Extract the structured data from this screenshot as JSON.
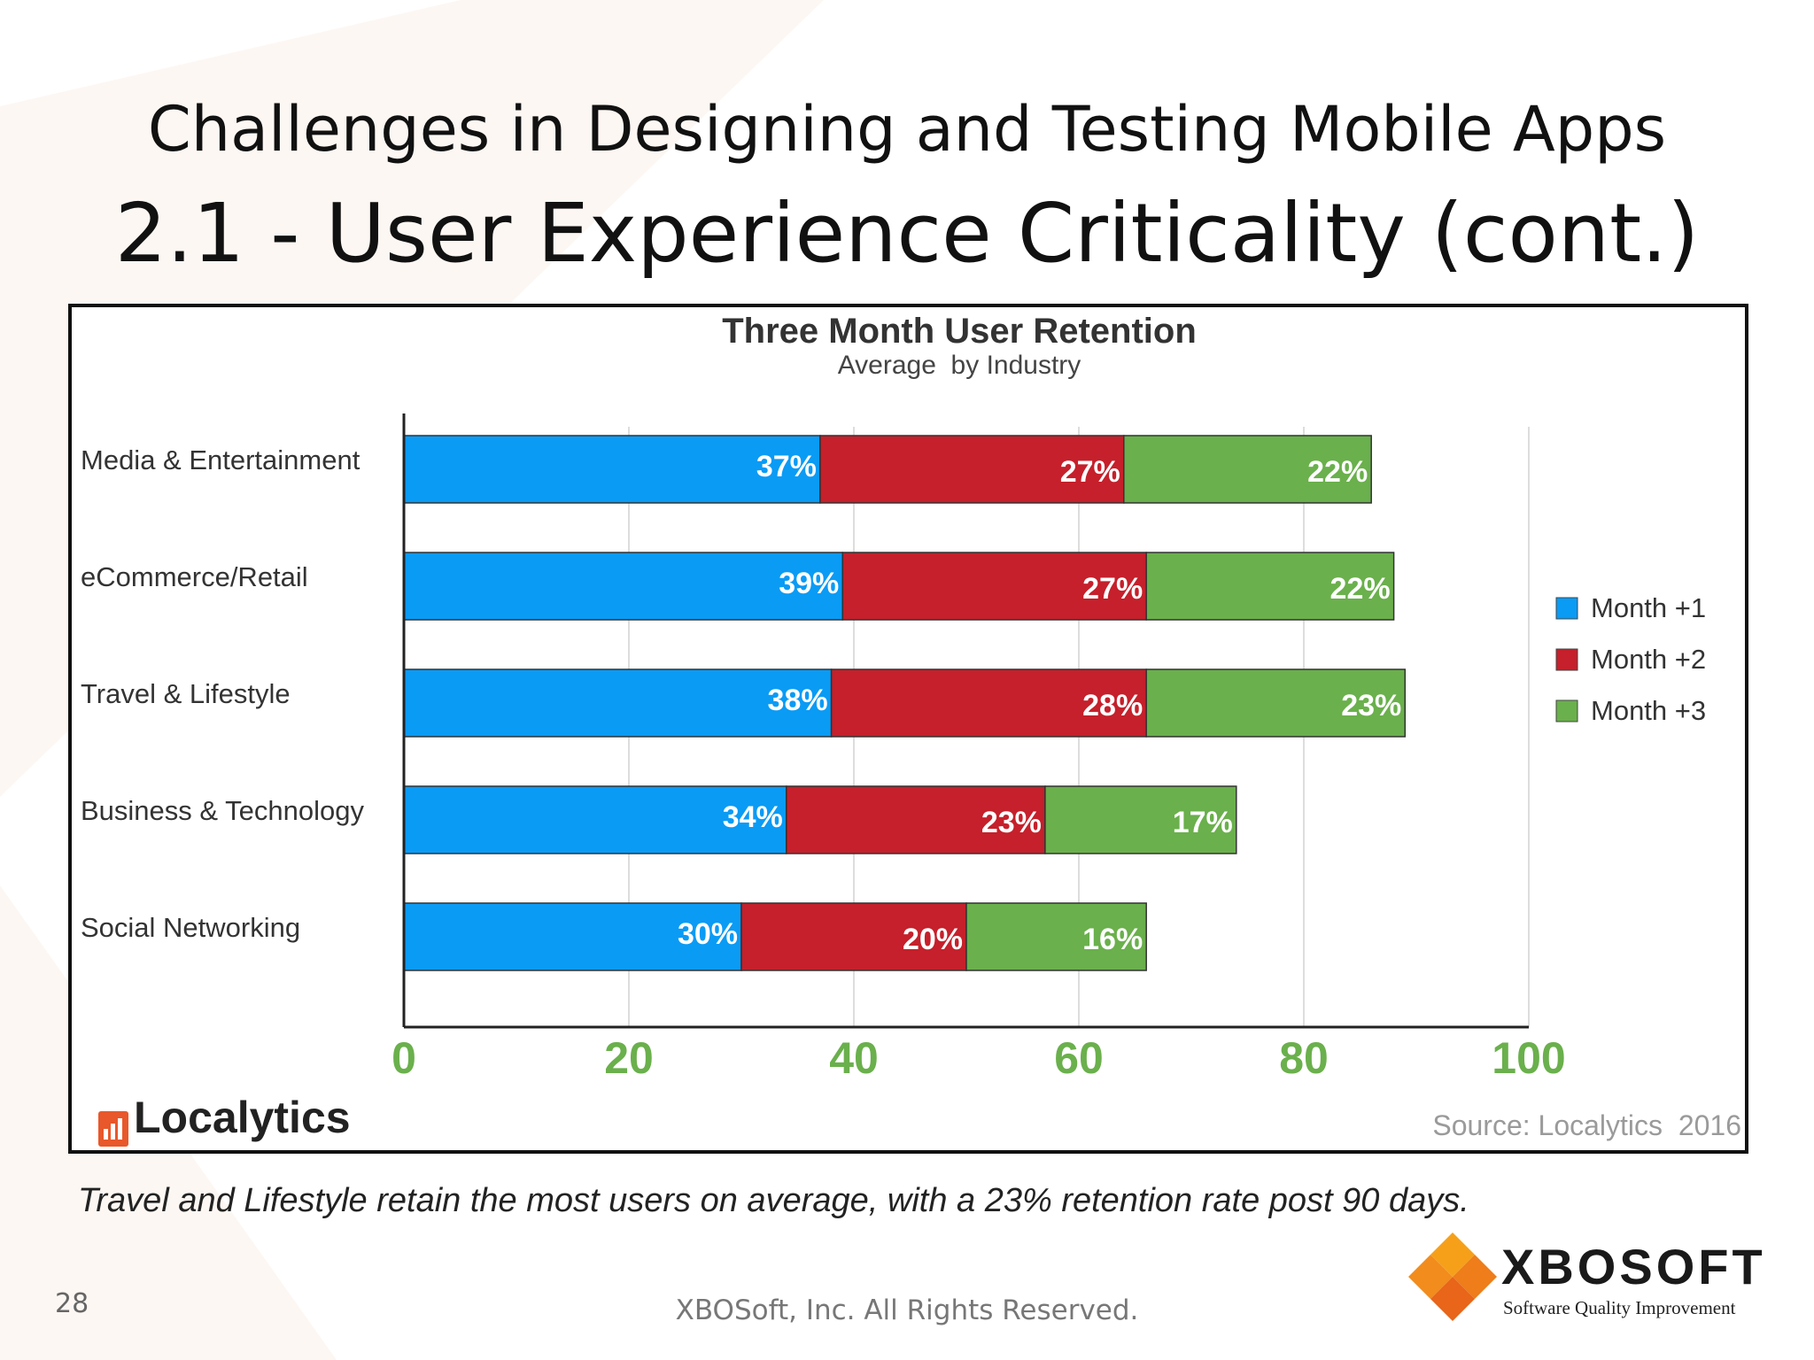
{
  "slide": {
    "title_line1": "Challenges in Designing and Testing Mobile Apps",
    "title_line2": "2.1 - User Experience Criticality (cont.)",
    "caption": "Travel and Lifestyle retain the most users on average, with a 23% retention rate post 90 days.",
    "page_number": "28",
    "footer": "XBOSoft, Inc. All Rights Reserved.",
    "brand_name": "XBOSOFT",
    "brand_tagline": "Software Quality Improvement",
    "chart_logo": "Localytics"
  },
  "colors": {
    "month1": "#0a9bf5",
    "month2": "#c5202b",
    "month3": "#6ab04c",
    "axis_tick": "#6ab04c",
    "brand_orange": "#f28c1c"
  },
  "chart_data": {
    "type": "bar",
    "orientation": "horizontal",
    "stacked": true,
    "title": "Three Month User Retention",
    "subtitle": "Average  by Industry",
    "source": "Source: Localytics  2016",
    "categories": [
      "Media & Entertainment",
      "eCommerce/Retail",
      "Travel & Lifestyle",
      "Business & Technology",
      "Social Networking"
    ],
    "series": [
      {
        "name": "Month +1",
        "values": [
          37,
          39,
          38,
          34,
          30
        ],
        "labels": [
          "37%",
          "39%",
          "38%",
          "34%",
          "30%"
        ]
      },
      {
        "name": "Month +2",
        "values": [
          27,
          27,
          28,
          23,
          20
        ],
        "labels": [
          "27%",
          "27%",
          "28%",
          "23%",
          "20%"
        ]
      },
      {
        "name": "Month +3",
        "values": [
          22,
          22,
          23,
          17,
          16
        ],
        "labels": [
          "22%",
          "22%",
          "23%",
          "17%",
          "16%"
        ]
      }
    ],
    "xlim": [
      0,
      100
    ],
    "xticks": [
      "0",
      "20",
      "40",
      "60",
      "80",
      "100"
    ],
    "grid": true,
    "legend": "right"
  }
}
